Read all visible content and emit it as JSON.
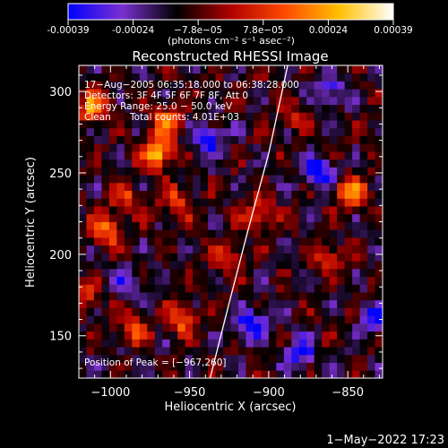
{
  "colorbar": {
    "ticks": [
      "-0.00039",
      "-0.00024",
      "−7.8e−05",
      "7.8e−05",
      "0.00024",
      "0.00039"
    ],
    "units": "(photons cm⁻² s⁻¹ asec⁻²)",
    "stops": [
      "#0000ff",
      "#7a2fd0",
      "#000000",
      "#b00000",
      "#ff4a00",
      "#ffc000",
      "#ffffff"
    ]
  },
  "chart_data": {
    "type": "heatmap",
    "title": "Reconstructed RHESSI Image",
    "xlabel": "Heliocentric X (arcsec)",
    "ylabel": "Heliocentric Y (arcsec)",
    "xlim": [
      -1020,
      -828
    ],
    "ylim": [
      124,
      316
    ],
    "xticks": [
      -1000,
      -950,
      -900,
      -850
    ],
    "yticks": [
      150,
      200,
      250,
      300
    ],
    "xtick_labels": [
      "−1000",
      "−950",
      "−900",
      "−850"
    ],
    "ytick_labels": [
      "150",
      "200",
      "250",
      "300"
    ],
    "value_range": [
      -0.00039,
      0.00039
    ],
    "limb_curve": [
      {
        "x": -937,
        "y": 124
      },
      {
        "x": -925,
        "y": 170
      },
      {
        "x": -913,
        "y": 215
      },
      {
        "x": -900,
        "y": 262
      },
      {
        "x": -888,
        "y": 316
      }
    ],
    "hotspots": [
      {
        "x": -970,
        "y": 262,
        "value": 0.00039
      },
      {
        "x": -965,
        "y": 282,
        "value": 0.0003
      },
      {
        "x": -1010,
        "y": 290,
        "value": 0.00032
      },
      {
        "x": -1003,
        "y": 215,
        "value": 0.00028
      },
      {
        "x": -958,
        "y": 232,
        "value": 0.00022
      },
      {
        "x": -905,
        "y": 225,
        "value": 0.00024
      },
      {
        "x": -848,
        "y": 238,
        "value": 0.00034
      },
      {
        "x": -863,
        "y": 198,
        "value": 0.0002
      },
      {
        "x": -955,
        "y": 160,
        "value": 0.00026
      },
      {
        "x": -985,
        "y": 155,
        "value": 0.00024
      },
      {
        "x": -927,
        "y": 198,
        "value": 0.0002
      },
      {
        "x": -883,
        "y": 285,
        "value": 0.00014
      },
      {
        "x": -1015,
        "y": 175,
        "value": 0.00018
      },
      {
        "x": -990,
        "y": 235,
        "value": 0.00018
      }
    ],
    "coldspots": [
      {
        "x": -910,
        "y": 157,
        "value": -0.0003
      },
      {
        "x": -868,
        "y": 250,
        "value": -0.00032
      },
      {
        "x": -938,
        "y": 270,
        "value": -0.00026
      },
      {
        "x": -832,
        "y": 160,
        "value": -0.00026
      },
      {
        "x": -860,
        "y": 300,
        "value": -0.0002
      },
      {
        "x": -990,
        "y": 185,
        "value": -0.00018
      },
      {
        "x": -880,
        "y": 140,
        "value": -0.00024
      }
    ]
  },
  "annotations": {
    "time_range": "17−Aug−2005 06:35:18.000 to 06:38:28.000",
    "detectors": "Detectors: 3F 4F 5F 6F 7F 8F, Att 0",
    "energy": "Energy Range: 25.0 − 50.0 keV",
    "method": "Clean",
    "counts": "Total counts: 4.01E+03",
    "peak": "Position of Peak = [−967,260]"
  },
  "footer": {
    "timestamp": "1−May−2022 17:23"
  }
}
